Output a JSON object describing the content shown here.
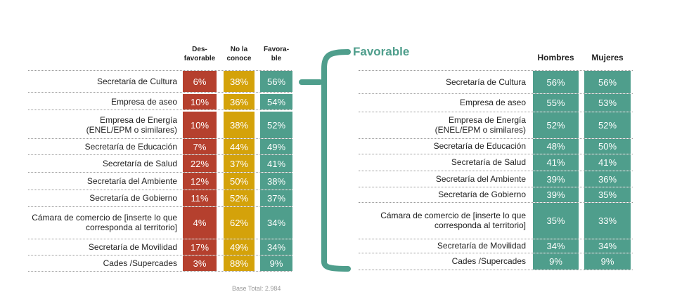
{
  "chart_data": [
    {
      "type": "table",
      "columns": [
        "Des-\nfavorable",
        "No la\nconoce",
        "Favora-\nble"
      ],
      "rows": [
        {
          "label": "Secretaría de Cultura",
          "values": [
            "6%",
            "38%",
            "56%"
          ]
        },
        {
          "label": "Empresa de aseo",
          "values": [
            "10%",
            "36%",
            "54%"
          ]
        },
        {
          "label": "Empresa de Energía\n(ENEL/EPM o similares)",
          "values": [
            "10%",
            "38%",
            "52%"
          ]
        },
        {
          "label": "Secretaría de Educación",
          "values": [
            "7%",
            "44%",
            "49%"
          ]
        },
        {
          "label": "Secretaría de Salud",
          "values": [
            "22%",
            "37%",
            "41%"
          ]
        },
        {
          "label": "Secretaría del Ambiente",
          "values": [
            "12%",
            "50%",
            "38%"
          ]
        },
        {
          "label": "Secretaría de Gobierno",
          "values": [
            "11%",
            "52%",
            "37%"
          ]
        },
        {
          "label": "Cámara de comercio de [inserte lo que\ncorresponda al territorio]",
          "values": [
            "4%",
            "62%",
            "34%"
          ]
        },
        {
          "label": "Secretaría de Movilidad",
          "values": [
            "17%",
            "49%",
            "34%"
          ]
        },
        {
          "label": "Cades /Supercades",
          "values": [
            "3%",
            "88%",
            "9%"
          ]
        }
      ]
    },
    {
      "type": "table",
      "title": "Favorable",
      "columns": [
        "Hombres",
        "Mujeres"
      ],
      "rows": [
        {
          "label": "Secretaría de Cultura",
          "values": [
            "56%",
            "56%"
          ]
        },
        {
          "label": "Empresa de aseo",
          "values": [
            "55%",
            "53%"
          ]
        },
        {
          "label": "Empresa de Energía\n(ENEL/EPM o similares)",
          "values": [
            "52%",
            "52%"
          ]
        },
        {
          "label": "Secretaría de Educación",
          "values": [
            "48%",
            "50%"
          ]
        },
        {
          "label": "Secretaría de Salud",
          "values": [
            "41%",
            "41%"
          ]
        },
        {
          "label": "Secretaría del Ambiente",
          "values": [
            "39%",
            "36%"
          ]
        },
        {
          "label": "Secretaría de Gobierno",
          "values": [
            "39%",
            "35%"
          ]
        },
        {
          "label": "Cámara de comercio de [inserte lo que\ncorresponda al territorio]",
          "values": [
            "35%",
            "33%"
          ]
        },
        {
          "label": "Secretaría de Movilidad",
          "values": [
            "34%",
            "34%"
          ]
        },
        {
          "label": "Cades /Supercades",
          "values": [
            "9%",
            "9%"
          ]
        }
      ]
    }
  ],
  "colors": {
    "desfavorable": "#b5402e",
    "no_conoce": "#d4a20a",
    "favorable": "#4f9e8c",
    "brace": "#4f9e8c"
  },
  "footnote": "Base Total: 2.984"
}
